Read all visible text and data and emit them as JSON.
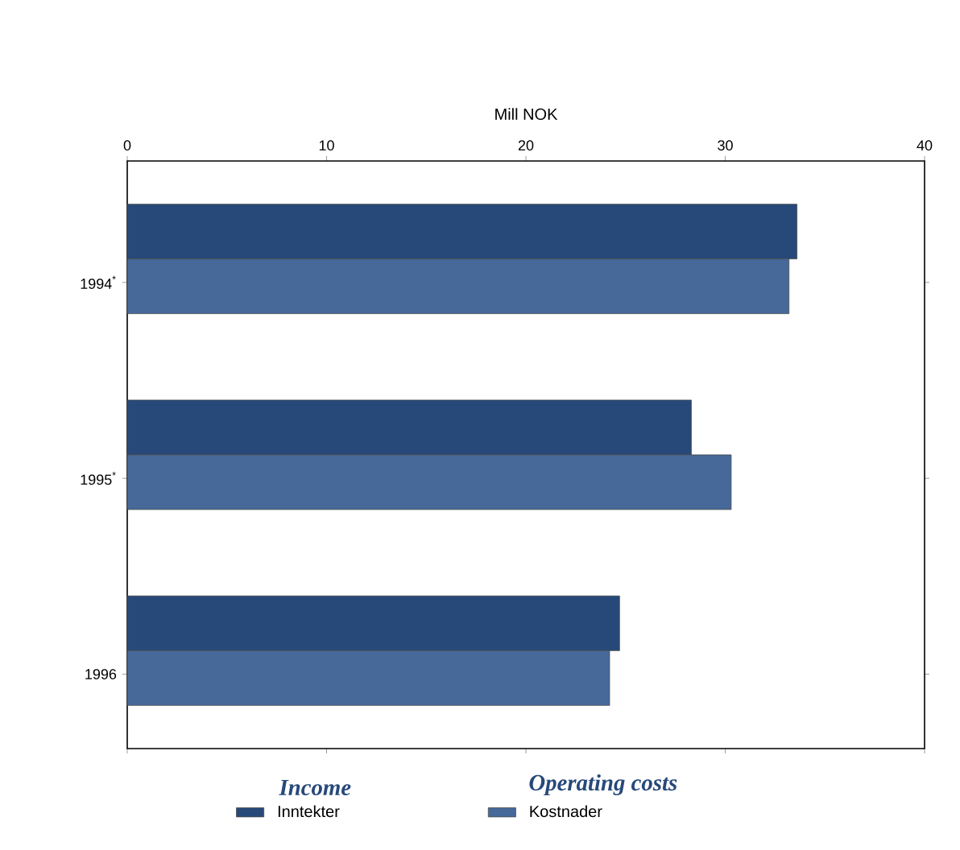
{
  "chart_data": {
    "type": "bar",
    "orientation": "horizontal",
    "xlabel": "Mill NOK",
    "categories": [
      "1994$^{*}$",
      "1995$^{*}$",
      "1996"
    ],
    "series": [
      {
        "name": "Inntekter",
        "color": "#27497a",
        "values": [
          33.6,
          28.3,
          24.7
        ]
      },
      {
        "name": "Kostnader",
        "color": "#46699a",
        "values": [
          33.2,
          30.3,
          24.2
        ]
      }
    ],
    "xlim": [
      0,
      40
    ],
    "xticks": [
      0,
      10,
      20,
      30,
      40
    ],
    "legend": "bottom",
    "annotations": [
      "Income",
      "Operating costs"
    ]
  }
}
